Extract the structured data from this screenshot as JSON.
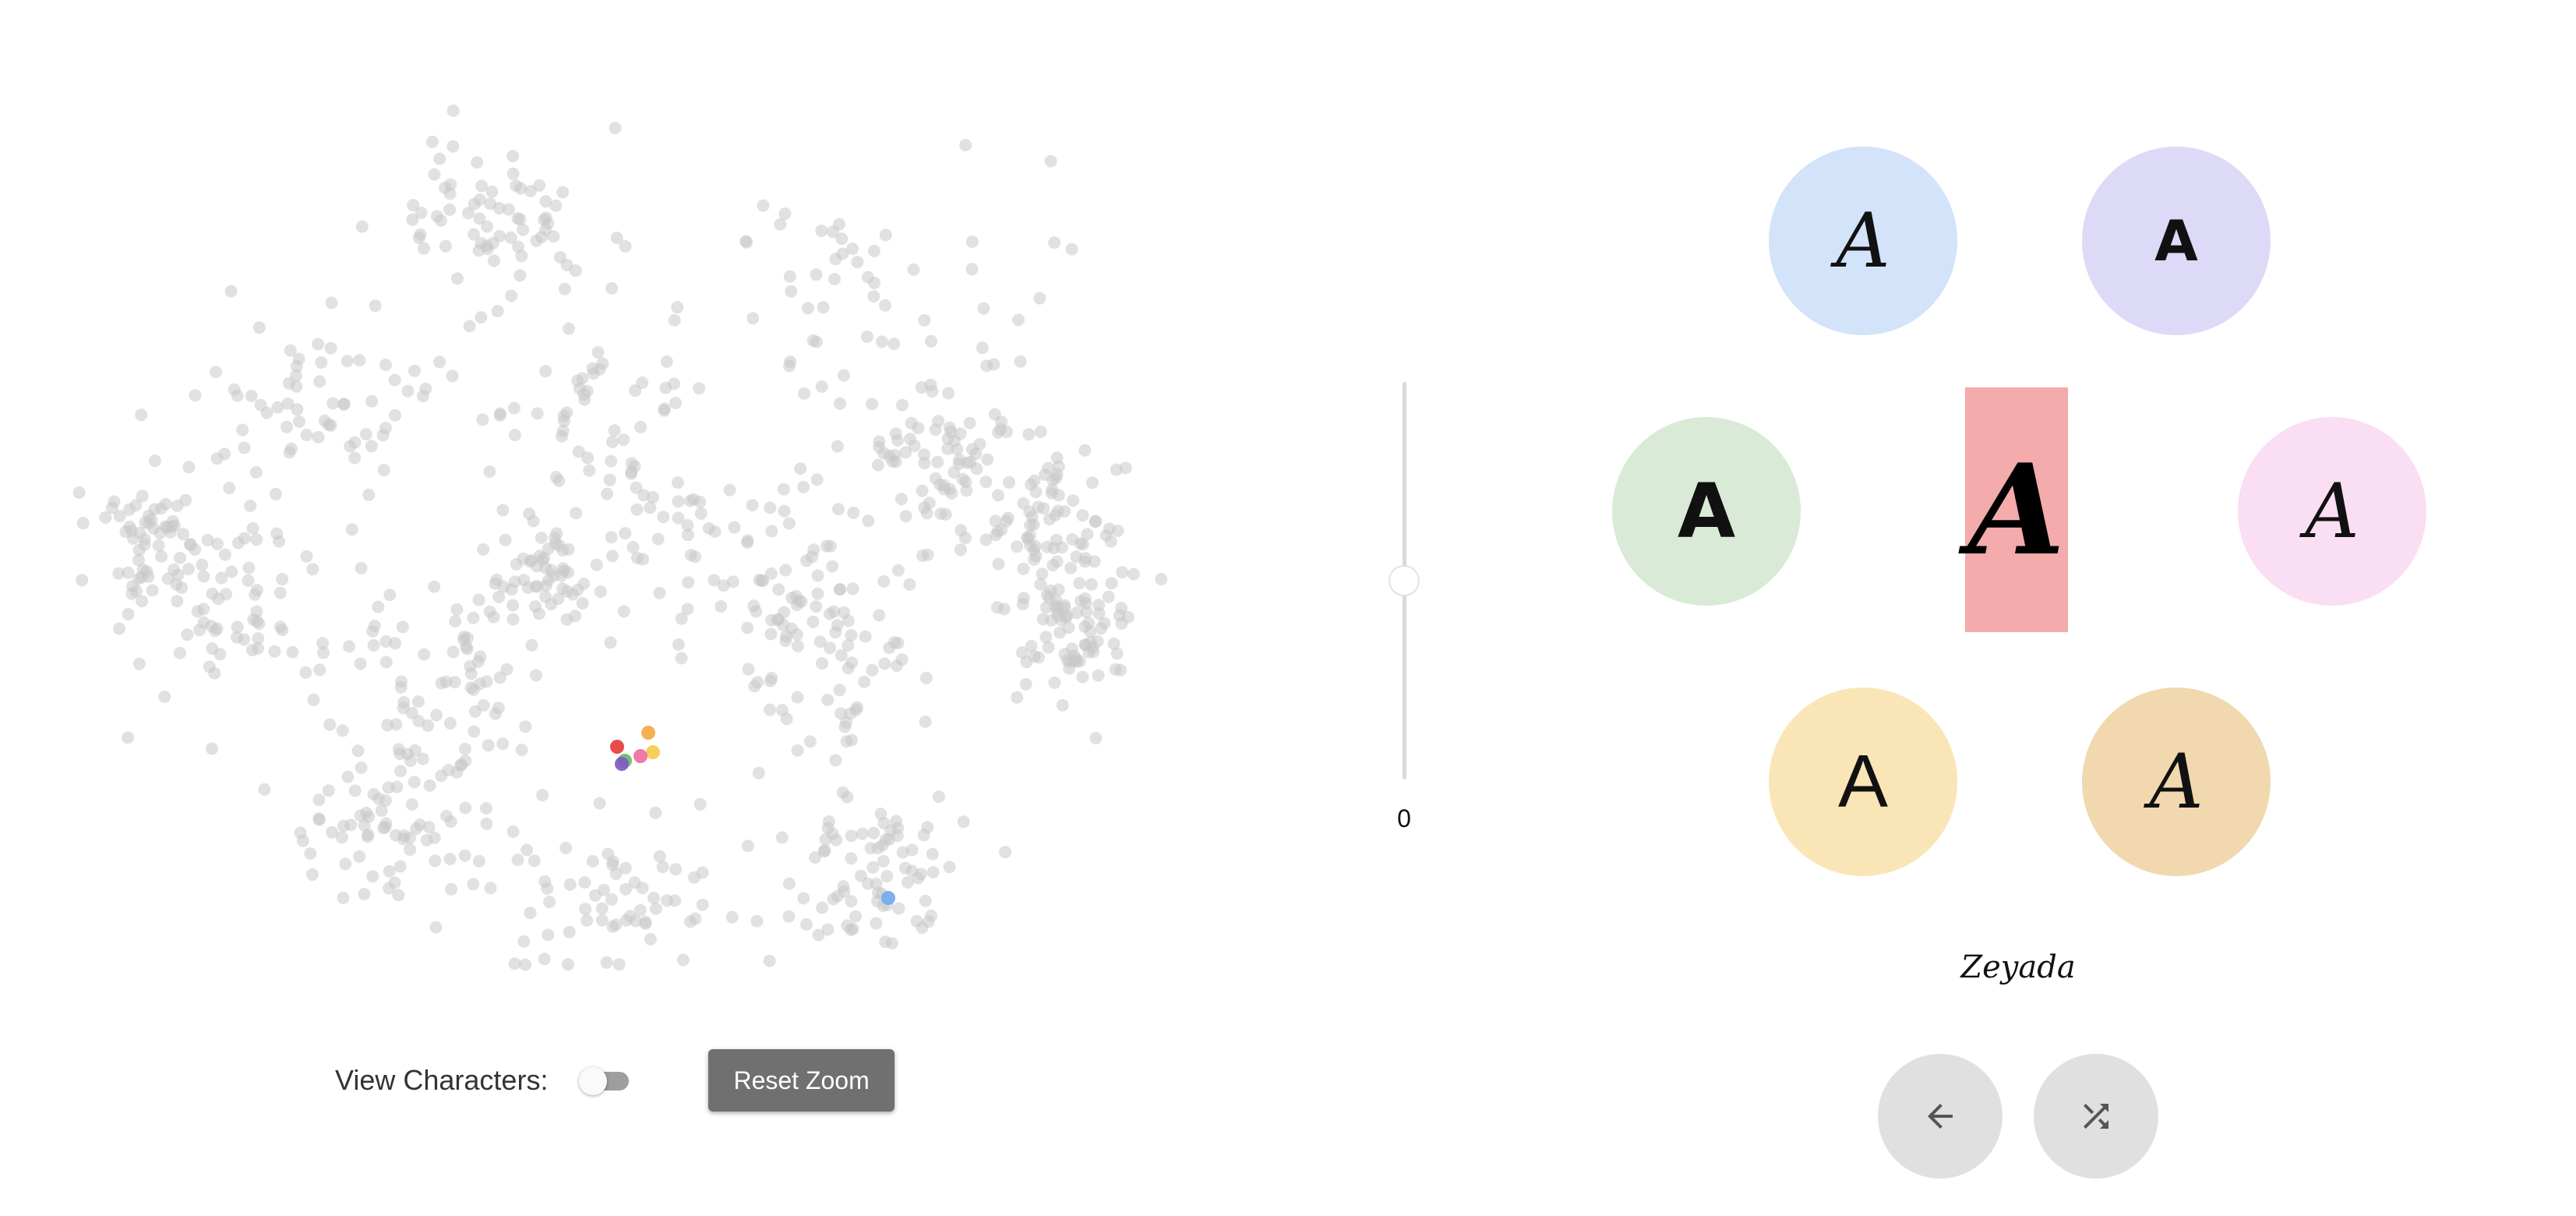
{
  "scatter": {
    "dot_color": "#c8c8c8",
    "dot_count": 1100,
    "highlighted_dots": [
      {
        "name": "orange",
        "color": "#f4a742"
      },
      {
        "name": "yellow",
        "color": "#f7c948"
      },
      {
        "name": "red",
        "color": "#e53935"
      },
      {
        "name": "pink",
        "color": "#ec6ba0"
      },
      {
        "name": "green",
        "color": "#66bb6a"
      },
      {
        "name": "purple",
        "color": "#7e57c2"
      },
      {
        "name": "blue",
        "color": "#6fa8ef"
      }
    ]
  },
  "controls": {
    "view_characters_label": "View Characters:",
    "view_characters_on": false,
    "reset_zoom_label": "Reset Zoom"
  },
  "slider": {
    "value": "0",
    "position_fraction": 0.5
  },
  "glyph_wheel": {
    "circles": [
      {
        "name": "blue",
        "glyph": "A",
        "color": "#d2e3fa"
      },
      {
        "name": "purple",
        "glyph": "A",
        "color": "#dddaf8"
      },
      {
        "name": "green",
        "glyph": "A",
        "color": "#d9ead7"
      },
      {
        "name": "pink",
        "glyph": "A",
        "color": "#f9def4"
      },
      {
        "name": "yellow",
        "glyph": "A",
        "color": "#fae5b6"
      },
      {
        "name": "orange",
        "glyph": "A",
        "color": "#f2d8af"
      }
    ],
    "center": {
      "glyph": "A",
      "color": "#f3abac"
    }
  },
  "font_name": "Zeyada",
  "nav": {
    "back_icon": "arrow-left-icon",
    "shuffle_icon": "shuffle-icon"
  }
}
